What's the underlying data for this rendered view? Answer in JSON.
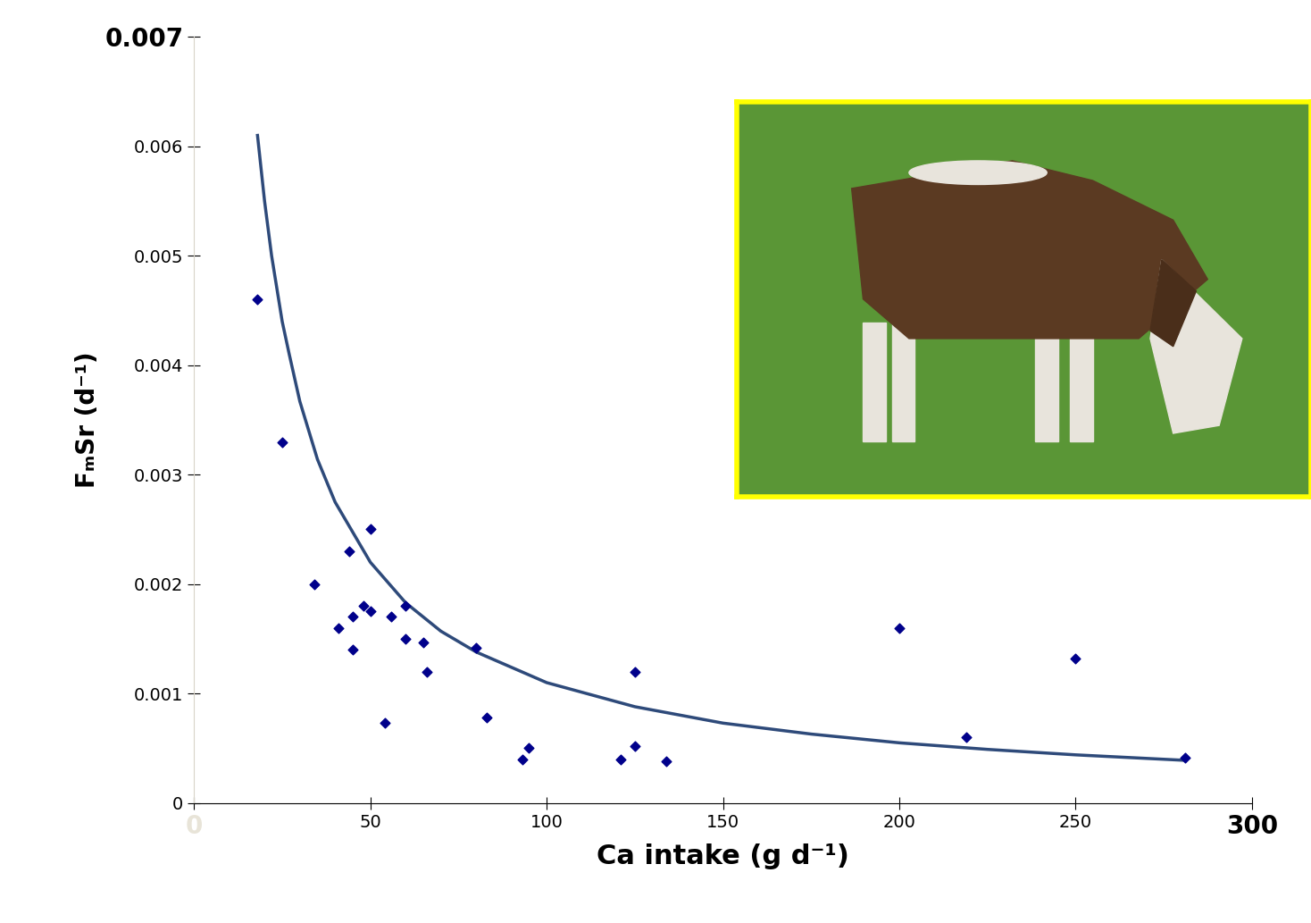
{
  "chart_data": {
    "type": "scatter",
    "x_label": "Ca intake (g d⁻¹)",
    "y_label": "FₘSr (d⁻¹)",
    "xlim": [
      0,
      300
    ],
    "xticks": [
      0,
      50,
      100,
      150,
      200,
      250,
      300
    ],
    "ylim": [
      0,
      0.007
    ],
    "yticks": [
      0,
      0.001,
      0.002,
      0.003,
      0.004,
      0.005,
      0.006,
      0.007
    ],
    "grid": false,
    "series": [
      {
        "type": "scatter",
        "color": "#00008b",
        "marker": "diamond",
        "x": [
          18,
          25,
          34,
          41,
          44,
          45,
          45,
          48,
          50,
          50,
          54,
          56,
          60,
          60,
          65,
          66,
          80,
          83,
          93,
          95,
          121,
          125,
          125,
          134,
          200,
          219,
          250,
          281
        ],
        "values": [
          0.0046,
          0.0033,
          0.002,
          0.0016,
          0.0023,
          0.0017,
          0.0014,
          0.0018,
          0.00175,
          0.0025,
          0.00073,
          0.0017,
          0.0018,
          0.0015,
          0.00147,
          0.0012,
          0.00142,
          0.00078,
          0.0004,
          0.0005,
          0.0004,
          0.0012,
          0.00052,
          0.00038,
          0.0016,
          0.0006,
          0.00132,
          0.00041
        ]
      },
      {
        "type": "line",
        "color": "#2e4a7a",
        "line_style": "solid",
        "x": [
          18,
          20,
          22,
          25,
          27,
          30,
          35,
          40,
          50,
          60,
          70,
          80,
          100,
          125,
          150,
          175,
          200,
          225,
          250,
          281
        ],
        "values": [
          0.0061,
          0.0055,
          0.005,
          0.0044,
          0.0041,
          0.00367,
          0.00314,
          0.00275,
          0.0022,
          0.00183,
          0.00157,
          0.00138,
          0.0011,
          0.00088,
          0.00073,
          0.00063,
          0.00055,
          0.00049,
          0.00044,
          0.00039
        ]
      }
    ]
  }
}
